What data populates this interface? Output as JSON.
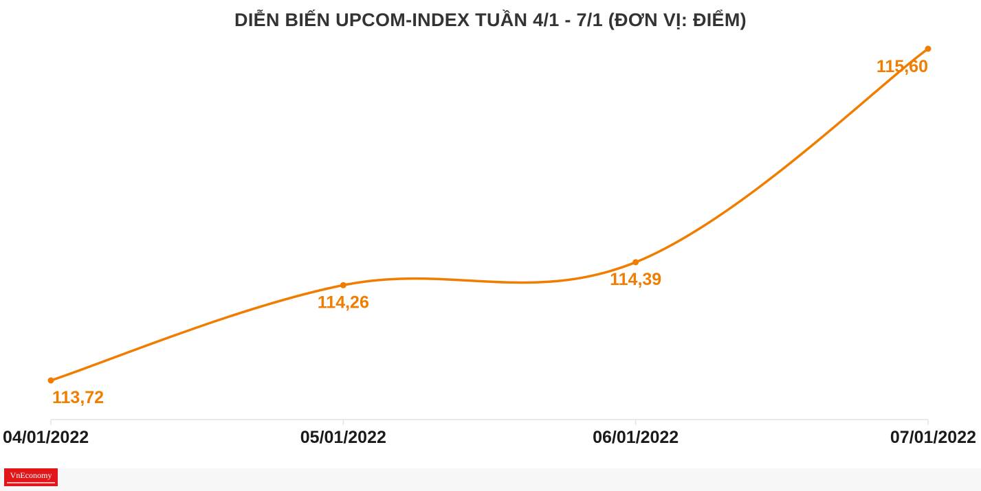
{
  "chart_data": {
    "type": "line",
    "title": "DIỄN BIẾN UPCOM-INDEX TUẦN 4/1 - 7/1 (ĐƠN VỊ: ĐIỂM)",
    "categories": [
      "04/01/2022",
      "05/01/2022",
      "06/01/2022",
      "07/01/2022"
    ],
    "series": [
      {
        "values": [
          113.72,
          114.26,
          114.39,
          115.6
        ]
      }
    ],
    "data_labels": [
      "113,72",
      "114,26",
      "114,39",
      "115,60"
    ],
    "ylim": [
      113.72,
      115.6
    ],
    "grid": false,
    "line_color": "#f07d00",
    "axis_color": "#e3e3e3"
  },
  "branding": {
    "logo": "VnEconomy"
  }
}
